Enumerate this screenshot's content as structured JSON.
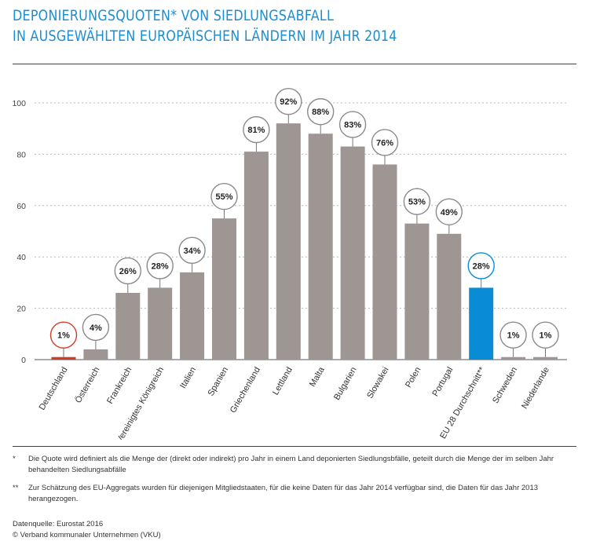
{
  "header": {
    "title_line1": "DEPONIERUNGSQUOTEN* VON SIEDLUNGSABFALL",
    "title_line2": "IN AUSGEWÄHLTEN EUROPÄISCHEN LÄNDERN IM JAHR 2014"
  },
  "colors": {
    "title": "#1b8fd3",
    "bar_default": "#9d9692",
    "bar_germany": "#d13a26",
    "bar_eu": "#0a8bd6",
    "gridline": "#b8b8b8"
  },
  "chart_data": {
    "type": "bar",
    "title": "",
    "xlabel": "",
    "ylabel": "",
    "ylim": [
      0,
      100
    ],
    "yticks": [
      0,
      20,
      40,
      60,
      80,
      100
    ],
    "grid": true,
    "categories": [
      "Deutschland",
      "Österreich",
      "Frankreich",
      "Vereinigtes Königreich",
      "Italien",
      "Spanien",
      "Griechenland",
      "Lettland",
      "Malta",
      "Bulgarien",
      "Slowakei",
      "Polen",
      "Portugal",
      "EU 28 Durchschnitt**",
      "Schweden",
      "Niederlande"
    ],
    "values": [
      1,
      4,
      26,
      28,
      34,
      55,
      81,
      92,
      88,
      83,
      76,
      53,
      49,
      28,
      1,
      1
    ],
    "data_labels": [
      "1%",
      "4%",
      "26%",
      "28%",
      "34%",
      "55%",
      "81%",
      "92%",
      "88%",
      "83%",
      "76%",
      "53%",
      "49%",
      "28%",
      "1%",
      "1%"
    ],
    "highlight": {
      "Deutschland": "#d13a26",
      "EU 28 Durchschnitt**": "#0a8bd6"
    }
  },
  "footnotes": [
    {
      "mark": "*",
      "text": "Die Quote wird definiert als die Menge der (direkt oder indirekt) pro Jahr in einem Land deponierten Siedlungsbfälle, geteilt durch die Menge der im selben Jahr behandelten Siedlungsabfälle"
    },
    {
      "mark": "**",
      "text": "Zur Schätzung des EU-Aggregats wurden für diejenigen Mitgliedstaaten, für die keine Daten für das Jahr 2014 verfügbar sind, die Daten für das Jahr 2013 herangezogen."
    }
  ],
  "source": {
    "line1": "Datenquelle: Eurostat 2016",
    "line2": "© Verband kommunaler Unternehmen (VKU)"
  }
}
